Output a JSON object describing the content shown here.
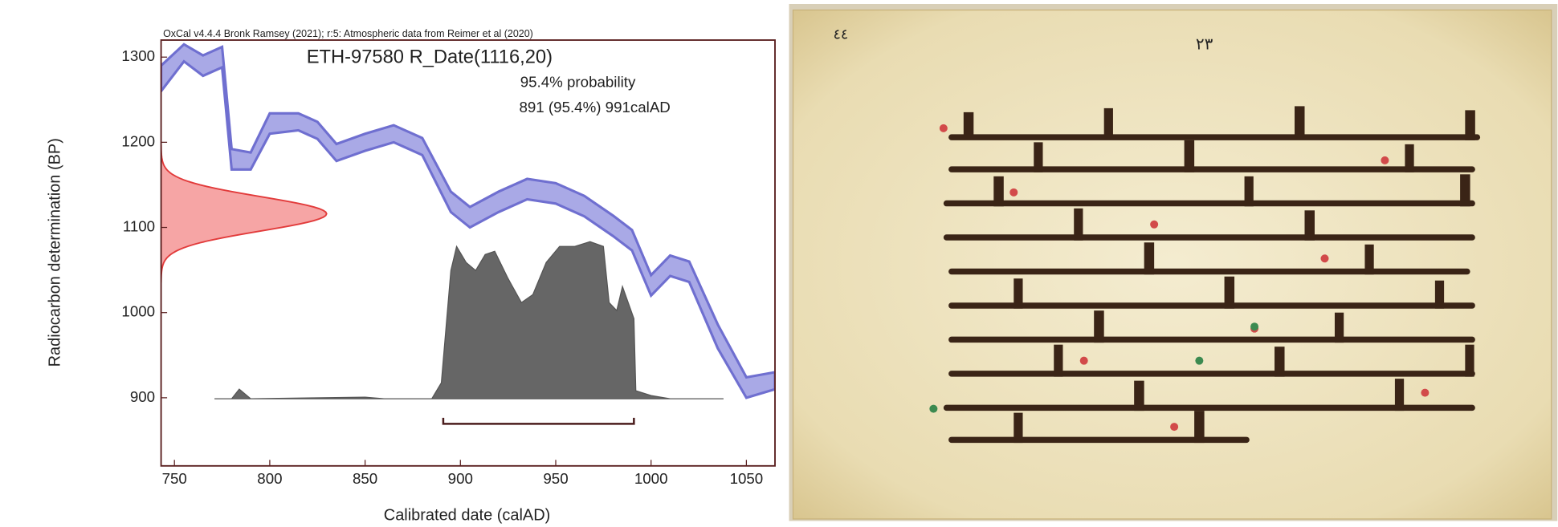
{
  "chart_data": {
    "type": "oxcal",
    "source": "OxCal v4.4.4 Bronk Ramsey (2021); r:5: Atmospheric data from Reimer et al (2020)",
    "title": "ETH-97580 R_Date(1116,20)",
    "probability_label": "95.4% probability",
    "range_label": "891 (95.4%) 991calAD",
    "xlabel": "Calibrated date (calAD)",
    "ylabel": "Radiocarbon determination (BP)",
    "xlim": [
      743,
      1065
    ],
    "xticks": [
      750,
      800,
      850,
      900,
      950,
      1000,
      1050
    ],
    "ylim": [
      820,
      1320
    ],
    "yticks": [
      900,
      1000,
      1100,
      1200,
      1300
    ],
    "curve": {
      "color": "#6f6fd0",
      "x": [
        743,
        755,
        765,
        775,
        780,
        790,
        800,
        815,
        825,
        835,
        850,
        865,
        880,
        895,
        905,
        920,
        935,
        950,
        965,
        980,
        990,
        1000,
        1010,
        1020,
        1035,
        1050,
        1065
      ],
      "values": [
        1275,
        1305,
        1290,
        1300,
        1180,
        1178,
        1222,
        1224,
        1214,
        1188,
        1200,
        1210,
        1195,
        1130,
        1112,
        1130,
        1145,
        1140,
        1125,
        1102,
        1085,
        1032,
        1055,
        1048,
        972,
        912,
        920
      ],
      "errors": [
        15,
        10,
        12,
        12,
        12,
        10,
        12,
        10,
        10,
        10,
        10,
        10,
        10,
        12,
        12,
        12,
        12,
        12,
        12,
        12,
        12,
        12,
        12,
        12,
        14,
        12,
        10
      ]
    },
    "date": {
      "mean": 1116,
      "error": 20,
      "color": "#f08080"
    },
    "probability": {
      "color": "#666666",
      "x": [
        771,
        780,
        784,
        790,
        850,
        860,
        885,
        890,
        895,
        898,
        903,
        908,
        913,
        918,
        925,
        932,
        938,
        945,
        952,
        960,
        968,
        975,
        978,
        982,
        985,
        988,
        991,
        992,
        1000,
        1010,
        1038
      ],
      "values": [
        0,
        0,
        0.06,
        0,
        0.01,
        0,
        0,
        0.1,
        0.8,
        0.95,
        0.85,
        0.8,
        0.9,
        0.92,
        0.75,
        0.6,
        0.65,
        0.85,
        0.95,
        0.95,
        0.98,
        0.95,
        0.6,
        0.55,
        0.7,
        0.6,
        0.5,
        0.05,
        0.02,
        0,
        0
      ]
    },
    "range": [
      891,
      991
    ]
  },
  "manuscript": {
    "page_number": "٢٣",
    "folio": "٤٤"
  }
}
